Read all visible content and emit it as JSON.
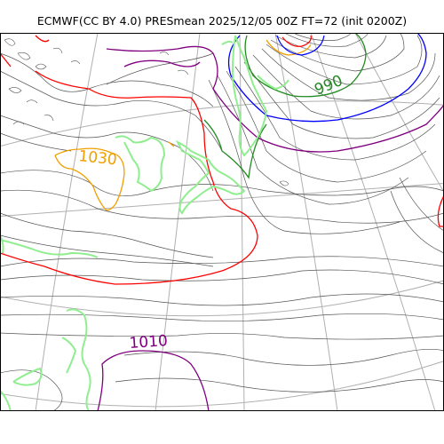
{
  "title": "ECMWF(CC BY 4.0) PRESmean 2025/12/05 00Z FT=72 (init 0200Z)",
  "contour_labels": [
    {
      "text": "990",
      "color": "#228b22"
    },
    {
      "text": "1030",
      "color": "#f0a000"
    },
    {
      "text": "1010",
      "color": "#800080"
    }
  ],
  "colors": {
    "isobar": "#555555",
    "graticule": "#b0b0b0",
    "coastline": "#90ee90",
    "isobar_990": "#228b22",
    "isobar_1030": "#f0a000",
    "isobar_1010": "#800080",
    "isobar_1020": "#ff0000",
    "isobar_1000": "#0000ff"
  }
}
